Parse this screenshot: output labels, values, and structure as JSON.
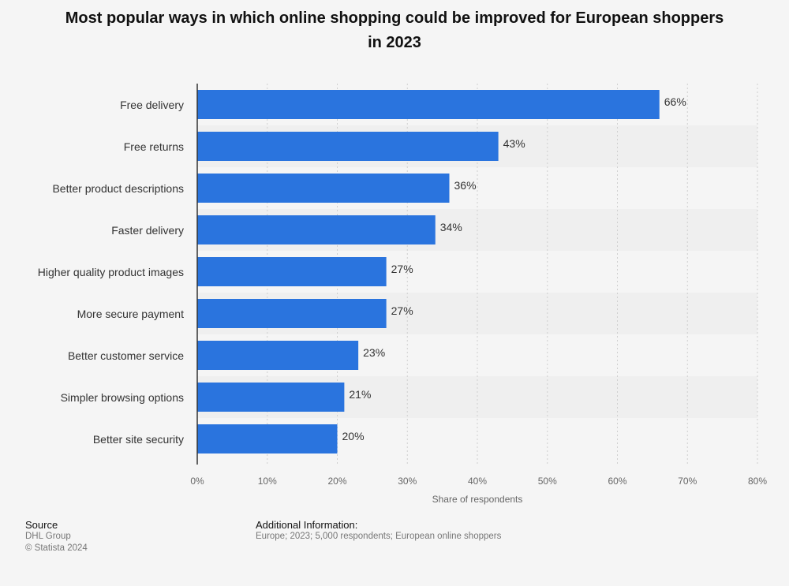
{
  "chart_data": {
    "type": "bar",
    "orientation": "horizontal",
    "title": "Most popular ways in which online shopping could be improved for European shoppers in 2023",
    "categories": [
      "Free delivery",
      "Free returns",
      "Better product descriptions",
      "Faster delivery",
      "Higher quality product images",
      "More secure payment",
      "Better customer service",
      "Simpler browsing options",
      "Better site security"
    ],
    "values": [
      66,
      43,
      36,
      34,
      27,
      27,
      23,
      21,
      20
    ],
    "value_labels": [
      "66%",
      "43%",
      "36%",
      "34%",
      "27%",
      "27%",
      "23%",
      "21%",
      "20%"
    ],
    "xlabel": "Share of respondents",
    "xlim": [
      0,
      80
    ],
    "xticks": [
      "0%",
      "10%",
      "20%",
      "30%",
      "40%",
      "50%",
      "60%",
      "70%",
      "80%"
    ],
    "grid": true,
    "bar_color": "#2a74de"
  },
  "footer": {
    "source_title": "Source",
    "source_name": "DHL Group",
    "copyright": "© Statista 2024",
    "info_title": "Additional Information:",
    "info_text": "Europe; 2023; 5,000 respondents; European online shoppers"
  }
}
